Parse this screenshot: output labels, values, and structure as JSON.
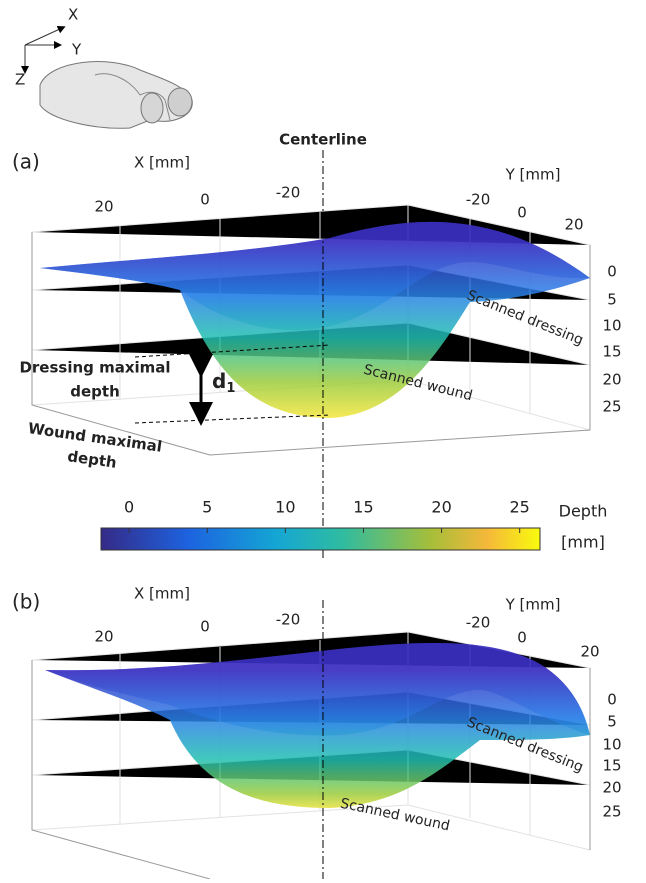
{
  "inset": {
    "axes": [
      "X",
      "Y",
      "Z"
    ]
  },
  "panels": [
    {
      "label": "(a)",
      "centerline": "Centerline",
      "x_axis": {
        "title": "X [mm]",
        "ticks": [
          20,
          0,
          -20
        ]
      },
      "y_axis": {
        "title": "Y [mm]",
        "ticks": [
          -20,
          0,
          20
        ]
      },
      "z_ticks": [
        0,
        5,
        10,
        15,
        20,
        25
      ],
      "dressing_label": "Scanned dressing",
      "wound_label": "Scanned wound",
      "dressing_depth_lines": [
        "Dressing maximal",
        "depth"
      ],
      "wound_depth_lines": [
        "Wound maximal",
        "depth"
      ],
      "distance_label": {
        "main": "d",
        "sub": "1"
      }
    },
    {
      "label": "(b)",
      "x_axis": {
        "title": "X [mm]",
        "ticks": [
          20,
          0,
          -20
        ]
      },
      "y_axis": {
        "title": "Y [mm]",
        "ticks": [
          -20,
          0,
          20
        ]
      },
      "z_ticks": [
        0,
        5,
        10,
        15,
        20,
        25
      ],
      "dressing_label": "Scanned dressing",
      "wound_label": "Scanned wound"
    }
  ],
  "colorbar": {
    "title_lines": [
      "Depth",
      "[mm]"
    ],
    "range": [
      -1.8,
      26.3
    ],
    "ticks": [
      0,
      5,
      10,
      15,
      20,
      25
    ]
  }
}
